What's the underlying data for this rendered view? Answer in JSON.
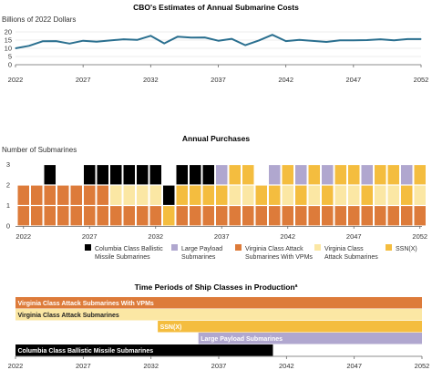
{
  "chart_data": [
    {
      "type": "line",
      "title": "CBO's Estimates of Annual Submarine Costs",
      "ylabel": "Billions of 2022 Dollars",
      "xlabel": "",
      "x": [
        2022,
        2023,
        2024,
        2025,
        2026,
        2027,
        2028,
        2029,
        2030,
        2031,
        2032,
        2033,
        2034,
        2035,
        2036,
        2037,
        2038,
        2039,
        2040,
        2041,
        2042,
        2043,
        2044,
        2045,
        2046,
        2047,
        2048,
        2049,
        2050,
        2051,
        2052
      ],
      "series": [
        {
          "color": "#2a6f8f",
          "values": [
            10.0,
            11.5,
            14.3,
            14.4,
            12.9,
            14.6,
            14.0,
            14.8,
            15.5,
            15.1,
            17.6,
            13.0,
            17.1,
            16.5,
            16.6,
            14.6,
            15.8,
            11.9,
            14.8,
            18.2,
            14.4,
            15.1,
            14.5,
            13.9,
            14.9,
            14.9,
            15.0,
            15.5,
            14.9,
            15.6,
            15.6
          ]
        }
      ],
      "ylim": [
        0,
        20
      ],
      "yticks": [
        "0",
        "5",
        "10",
        "15",
        "20"
      ],
      "xticks": [
        "2022",
        "2027",
        "2032",
        "2037",
        "2042",
        "2047",
        "2052"
      ],
      "grid": "horizontal"
    },
    {
      "type": "bar",
      "stacked": true,
      "title": "Annual Purchases",
      "ylabel": "Number of Submarines",
      "xlabel": "",
      "categories": [
        2022,
        2023,
        2024,
        2025,
        2026,
        2027,
        2028,
        2029,
        2030,
        2031,
        2032,
        2033,
        2034,
        2035,
        2036,
        2037,
        2038,
        2039,
        2040,
        2041,
        2042,
        2043,
        2044,
        2045,
        2046,
        2047,
        2048,
        2049,
        2050,
        2051,
        2052
      ],
      "series": [
        {
          "name": "Columbia Class Ballistic Missile Submarines",
          "color": "#000000",
          "values": [
            0,
            0,
            1,
            0,
            0,
            1,
            1,
            1,
            1,
            1,
            1,
            1,
            1,
            1,
            1,
            0,
            0,
            0,
            0,
            0,
            0,
            0,
            0,
            0,
            0,
            0,
            0,
            0,
            0,
            0,
            0
          ]
        },
        {
          "name": "Virginia Class Attack Submarines With VPMs",
          "color": "#dd7b3a",
          "values": [
            2,
            2,
            2,
            2,
            2,
            2,
            2,
            1,
            1,
            1,
            1,
            0,
            1,
            1,
            1,
            1,
            1,
            1,
            1,
            1,
            1,
            1,
            1,
            1,
            1,
            1,
            1,
            1,
            1,
            1,
            1
          ]
        },
        {
          "name": "Virginia Class Attack Submarines",
          "color": "#fbe7a4",
          "values": [
            0,
            0,
            0,
            0,
            0,
            0,
            0,
            1,
            1,
            1,
            1,
            0,
            0,
            0,
            0,
            0,
            0,
            0,
            0,
            0,
            0,
            0,
            0,
            0,
            0,
            0,
            0,
            0,
            0,
            0,
            0
          ]
        },
        {
          "name": "SSN(X)",
          "color": "#f4bd3f",
          "values": [
            0,
            0,
            0,
            0,
            0,
            0,
            0,
            0,
            0,
            0,
            0,
            1,
            1,
            1,
            1,
            1,
            1,
            1,
            1,
            1,
            1,
            1,
            1,
            1,
            1,
            1,
            1,
            1,
            1,
            1,
            1
          ]
        },
        {
          "name": "Large Payload Submarines",
          "color": "#b0a7cf",
          "values": [
            0,
            0,
            0,
            0,
            0,
            0,
            0,
            0,
            0,
            0,
            0,
            0,
            0,
            0,
            0,
            1,
            0,
            0,
            0,
            1,
            0,
            1,
            0,
            1,
            0,
            0,
            1,
            0,
            0,
            1,
            0
          ]
        }
      ],
      "extra_pale": [
        0,
        0,
        0,
        0,
        0,
        0,
        0,
        0,
        0,
        0,
        0,
        0,
        0,
        0,
        0,
        0,
        1,
        1,
        0,
        0,
        1,
        0,
        1,
        0,
        1,
        1,
        0,
        1,
        1,
        0,
        1
      ],
      "ylim": [
        0,
        3
      ],
      "yticks": [
        "0",
        "1",
        "2",
        "3"
      ],
      "xticks": [
        "2022",
        "2027",
        "2032",
        "2037",
        "2042",
        "2047",
        "2052"
      ],
      "legend": [
        {
          "name": "Columbia Class Ballistic Missile Submarines",
          "line1": "Columbia Class Ballistic",
          "line2": "Missile Submarines",
          "color": "#000000"
        },
        {
          "name": "Large Payload Submarines",
          "line1": "Large Payload",
          "line2": "Submarines",
          "color": "#b0a7cf"
        },
        {
          "name": "Virginia Class Attack Submarines With VPMs",
          "line1": "Virginia Class Attack",
          "line2": "Submarines With VPMs",
          "color": "#dd7b3a"
        },
        {
          "name": "Virginia Class Attack Submarines",
          "line1": "Virginia Class",
          "line2": "Attack Submarines",
          "color": "#fbe7a4"
        },
        {
          "name": "SSN(X)",
          "line1": "SSN(X)",
          "line2": "",
          "color": "#f4bd3f"
        }
      ],
      "legend_placement": "bottom"
    },
    {
      "type": "gantt",
      "title": "Time Periods of Ship Classes in Production",
      "title_note": "a",
      "bars": [
        {
          "label": "Virginia Class Attack Submarines With VPMs",
          "start": 2022,
          "end": 2052,
          "color": "#dd7b3a",
          "text_color": "#ffffff"
        },
        {
          "label": "Virginia Class Attack Submarines",
          "start": 2022,
          "end": 2052,
          "color": "#fbe7a4",
          "text_color": "#222222"
        },
        {
          "label": "SSN(X)",
          "start": 2032.5,
          "end": 2052,
          "color": "#f4bd3f",
          "text_color": "#ffffff"
        },
        {
          "label": "Large Payload Submarines",
          "start": 2035.5,
          "end": 2052,
          "color": "#b0a7cf",
          "text_color": "#ffffff"
        },
        {
          "label": "Columbia Class Ballistic Missile Submarines",
          "start": 2022,
          "end": 2041,
          "color": "#000000",
          "text_color": "#ffffff"
        }
      ],
      "xlim": [
        2022,
        2052
      ],
      "xticks": [
        "2022",
        "2027",
        "2032",
        "2037",
        "2042",
        "2047",
        "2052"
      ]
    }
  ]
}
